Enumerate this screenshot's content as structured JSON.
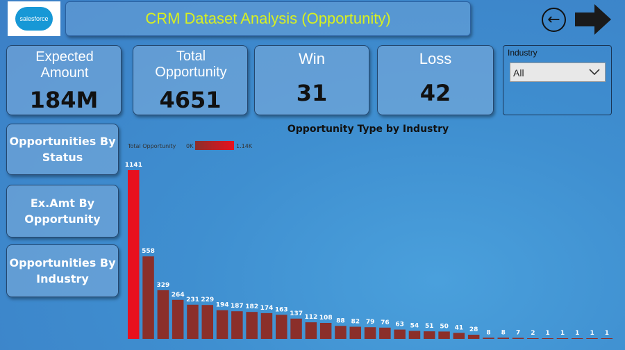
{
  "header": {
    "logo_text": "salesforce",
    "title": "CRM Dataset Analysis (Opportunity)",
    "back_icon": "arrow-left-circle-icon",
    "forward_icon": "arrow-right-icon"
  },
  "kpis": [
    {
      "label": "Expected Amount",
      "value": "184M"
    },
    {
      "label": "Total Opportunity",
      "value": "4651"
    },
    {
      "label": "Win",
      "value": "31"
    },
    {
      "label": "Loss",
      "value": "42"
    }
  ],
  "slicer": {
    "label": "Industry",
    "selected": "All"
  },
  "nav_buttons": [
    {
      "label": "Opportunities By Status"
    },
    {
      "label": "Ex.Amt By Opportunity"
    },
    {
      "label": "Opportunities By Industry"
    }
  ],
  "colors": {
    "title": "#d8f020",
    "bar_max": "#e8101e",
    "bar": "#8b2f2a"
  },
  "chart_data": {
    "type": "bar",
    "title": "Opportunity Type by Industry",
    "legend": {
      "label": "Total Opportunity",
      "min_label": "0K",
      "max_label": "1.14K"
    },
    "values": [
      1141,
      558,
      329,
      264,
      231,
      229,
      194,
      187,
      182,
      174,
      163,
      137,
      112,
      108,
      88,
      82,
      79,
      76,
      63,
      54,
      51,
      50,
      41,
      28,
      8,
      8,
      7,
      2,
      1,
      1,
      1,
      1,
      1
    ],
    "data_labels": true
  }
}
